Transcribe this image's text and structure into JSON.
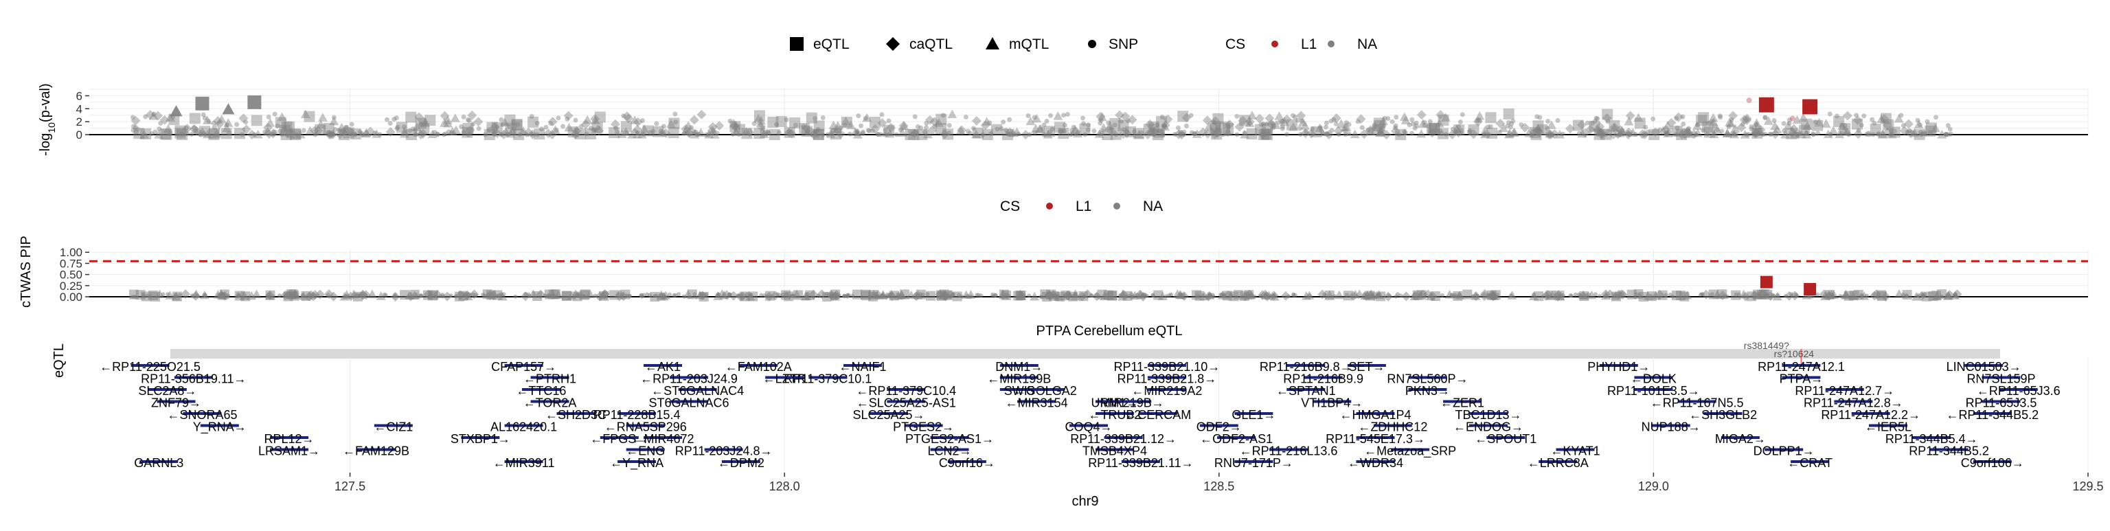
{
  "legend1": {
    "shape_items": [
      {
        "label": "eQTL",
        "shape": "square"
      },
      {
        "label": "caQTL",
        "shape": "diamond"
      },
      {
        "label": "mQTL",
        "shape": "triangle"
      },
      {
        "label": "SNP",
        "shape": "circle"
      }
    ],
    "cs_title": "CS",
    "cs_items": [
      {
        "label": "L1",
        "color": "#b22222"
      },
      {
        "label": "NA",
        "color": "#808080"
      }
    ]
  },
  "legend2": {
    "cs_title": "CS",
    "cs_items": [
      {
        "label": "L1",
        "color": "#b22222"
      },
      {
        "label": "NA",
        "color": "#808080"
      }
    ]
  },
  "chart_data": [
    {
      "type": "scatter",
      "title": "",
      "ylabel": "-log10(p-val)",
      "ylabel_parts": {
        "pre": "-log",
        "sub": "10",
        "post": "(p-val)"
      },
      "y_ticks": [
        0,
        2,
        4,
        6
      ],
      "ylim": [
        0,
        7
      ],
      "xlim": [
        127.2,
        129.5
      ],
      "data_xrange": [
        127.25,
        129.35
      ],
      "grid": true,
      "colors": {
        "na": "#808080",
        "cs": "#b22222"
      },
      "series": [
        {
          "name": "L1",
          "points": [
            {
              "x": 129.13,
              "y": 4.6,
              "shape": "square"
            },
            {
              "x": 129.18,
              "y": 4.3,
              "shape": "square"
            },
            {
              "x": 129.11,
              "y": 5.3,
              "shape": "circle"
            },
            {
              "x": 129.16,
              "y": 2.5,
              "shape": "circle"
            }
          ]
        }
      ],
      "background_points_note": "many grey NA variants spread across the region",
      "highlight_na": [
        {
          "x": 127.33,
          "y": 4.8,
          "shape": "square"
        },
        {
          "x": 127.39,
          "y": 5.0,
          "shape": "square"
        },
        {
          "x": 127.3,
          "y": 3.6,
          "shape": "triangle"
        },
        {
          "x": 127.36,
          "y": 3.9,
          "shape": "triangle"
        }
      ]
    },
    {
      "type": "scatter",
      "title": "",
      "ylabel": "cTWAS PIP",
      "y_ticks": [
        0,
        0.25,
        0.5,
        0.75,
        1.0
      ],
      "y_tick_labels": [
        "0.00",
        "0.25",
        "0.50",
        "0.75",
        "1.00"
      ],
      "ylim": [
        0,
        1.05
      ],
      "xlim": [
        127.2,
        129.5
      ],
      "threshold": 0.8,
      "threshold_color": "#ff0000",
      "grid": true,
      "series": [
        {
          "name": "L1",
          "points": [
            {
              "x": 129.13,
              "y": 0.33,
              "shape": "square"
            },
            {
              "x": 129.18,
              "y": 0.17,
              "shape": "square"
            }
          ]
        }
      ]
    },
    {
      "type": "gene_track",
      "title": "PTPA Cerebellum eQTL",
      "track_label": "eQTL",
      "xlabel": "chr9",
      "x_ticks": [
        127.5,
        128.0,
        128.5,
        129.0,
        129.5
      ],
      "x_tick_labels": [
        "127.5",
        "128.0",
        "128.5",
        "129.0",
        "129.5"
      ],
      "xlim": [
        127.2,
        129.5
      ],
      "snp_labels": [
        "rs381449?",
        "rs?10624"
      ],
      "genes": [
        {
          "name": "←RP11-225O21.5",
          "x": 127.27
        },
        {
          "name": "RP11-356B19.11→",
          "x": 127.32
        },
        {
          "name": "SLC2A8→",
          "x": 127.29
        },
        {
          "name": "ZNF79→",
          "x": 127.3
        },
        {
          "name": "←SNORA65",
          "x": 127.33
        },
        {
          "name": "Y_RNA→",
          "x": 127.35
        },
        {
          "name": "RPL12→",
          "x": 127.43
        },
        {
          "name": "←FAM129B",
          "x": 127.53
        },
        {
          "name": "←MIR3911",
          "x": 127.7
        },
        {
          "name": "CFAP157→",
          "x": 127.7
        },
        {
          "name": "←PTRH1",
          "x": 127.73
        },
        {
          "name": "←TTC16",
          "x": 127.72
        },
        {
          "name": "←TOR2A",
          "x": 127.73
        },
        {
          "name": "←SH2D3C",
          "x": 127.76
        },
        {
          "name": "AL162420.1",
          "x": 127.7
        },
        {
          "name": "←FPGS→",
          "x": 127.81
        },
        {
          "name": "←ENG",
          "x": 127.84
        },
        {
          "name": "←Y_RNA",
          "x": 127.83
        },
        {
          "name": "←AK1",
          "x": 127.86
        },
        {
          "name": "←RP11-203J24.9",
          "x": 127.89
        },
        {
          "name": "←ST6GALNAC4",
          "x": 127.9
        },
        {
          "name": "ST6GALNAC6",
          "x": 127.89
        },
        {
          "name": "RP11-228B15.4",
          "x": 127.83
        },
        {
          "name": "←RNA5SP296",
          "x": 127.84
        },
        {
          "name": "←MIR4672",
          "x": 127.86
        },
        {
          "name": "RP11-203J24.8→",
          "x": 127.93
        },
        {
          "name": "←DPM2",
          "x": 127.95
        },
        {
          "name": "←FAM102A",
          "x": 127.97
        },
        {
          "name": "RP11-379C10.1",
          "x": 128.05
        },
        {
          "name": "←RP11-379C10.4",
          "x": 128.14
        },
        {
          "name": "←SLC25A25-AS1",
          "x": 128.14
        },
        {
          "name": "SLC25A25→",
          "x": 128.12
        },
        {
          "name": "PTGES2→",
          "x": 128.16
        },
        {
          "name": "PTGES2-AS1→",
          "x": 128.19
        },
        {
          "name": "LCN2→",
          "x": 128.19
        },
        {
          "name": "C9orf16→",
          "x": 128.21
        },
        {
          "name": "DNM1→",
          "x": 128.27
        },
        {
          "name": "←MIR199B",
          "x": 128.27
        },
        {
          "name": "←GOLGA2",
          "x": 128.3
        },
        {
          "name": "←MIR3154",
          "x": 128.29
        },
        {
          "name": "←TRUB2",
          "x": 128.38
        },
        {
          "name": "COQ4→",
          "x": 128.35
        },
        {
          "name": "RP11-339B21.12→",
          "x": 128.39
        },
        {
          "name": "TMSB4XP4",
          "x": 128.38
        },
        {
          "name": "RP11-339B21.11→",
          "x": 128.41
        },
        {
          "name": "RP11-339B21.10→",
          "x": 128.44
        },
        {
          "name": "RP11-339B21.8→",
          "x": 128.44
        },
        {
          "name": "←MIR219A2",
          "x": 128.44
        },
        {
          "name": "MIR219B→",
          "x": 128.4
        },
        {
          "name": "←CERCAM",
          "x": 128.43
        },
        {
          "name": "ODF2→",
          "x": 128.5
        },
        {
          "name": "←ODF2-AS1",
          "x": 128.52
        },
        {
          "name": "←RP11-216L13.6",
          "x": 128.58
        },
        {
          "name": "RNU7-171P→",
          "x": 128.54
        },
        {
          "name": "RP11-216B9.8→",
          "x": 128.6
        },
        {
          "name": "RP11-216B9.9",
          "x": 128.62
        },
        {
          "name": "←SPTAN1",
          "x": 128.6
        },
        {
          "name": "VTI1BP4→",
          "x": 128.63
        },
        {
          "name": "←HMGA1P4",
          "x": 128.68
        },
        {
          "name": "←ZDHHC12",
          "x": 128.7
        },
        {
          "name": "RP11-545E17.3→",
          "x": 128.68
        },
        {
          "name": "←Metazoa_SRP",
          "x": 128.72
        },
        {
          "name": "←WDR34",
          "x": 128.68
        },
        {
          "name": "SET→",
          "x": 128.67
        },
        {
          "name": "RN7SL560P→",
          "x": 128.74
        },
        {
          "name": "PKN3→",
          "x": 128.74
        },
        {
          "name": "←ZER1",
          "x": 128.78
        },
        {
          "name": "TBC1D13→",
          "x": 128.81
        },
        {
          "name": "←ENDOG→",
          "x": 128.81
        },
        {
          "name": "←SPOUT1",
          "x": 128.83
        },
        {
          "name": "←KYAT1",
          "x": 128.91
        },
        {
          "name": "←LRRC8A",
          "x": 128.89
        },
        {
          "name": "PHYHD1→",
          "x": 128.96
        },
        {
          "name": "←DOLK",
          "x": 129.0
        },
        {
          "name": "RP11-101E3.5→",
          "x": 129.0
        },
        {
          "name": "←RP11-167N5.5",
          "x": 129.05
        },
        {
          "name": "←SH3GLB2",
          "x": 129.08
        },
        {
          "name": "NUP188→",
          "x": 129.02
        },
        {
          "name": "MIGA2→",
          "x": 129.1
        },
        {
          "name": "DOLPP1→",
          "x": 129.15
        },
        {
          "name": "←CRAT",
          "x": 129.18
        },
        {
          "name": "RP11-247A12.1",
          "x": 129.17
        },
        {
          "name": "PTPA→",
          "x": 129.17
        },
        {
          "name": "RP11-247A12.7→",
          "x": 129.22
        },
        {
          "name": "RP11-247A12.8→",
          "x": 129.23
        },
        {
          "name": "RP11-247A12.2→",
          "x": 129.25
        },
        {
          "name": "←IER5L",
          "x": 129.27
        },
        {
          "name": "RP11-344B5.4→",
          "x": 129.32
        },
        {
          "name": "RP11-344B5.2",
          "x": 129.34
        },
        {
          "name": "C9orf106→",
          "x": 129.39
        },
        {
          "name": "LINC01503→",
          "x": 129.38
        },
        {
          "name": "RN7SL159P",
          "x": 129.4
        },
        {
          "name": "←RP11-65J3.6",
          "x": 129.42
        },
        {
          "name": "RP11-65J3.5",
          "x": 129.4
        },
        {
          "name": "←RP11-344B5.2",
          "x": 129.39
        },
        {
          "name": "←CIZ1",
          "x": 127.55
        },
        {
          "name": "STXBP1→",
          "x": 127.65
        },
        {
          "name": "LRSAM1→",
          "x": 127.43
        },
        {
          "name": "GARNL3",
          "x": 127.28
        },
        {
          "name": "←NAIF1",
          "x": 128.09
        },
        {
          "name": "←LZTR",
          "x": 128.0
        },
        {
          "name": "SWI5",
          "x": 128.27
        },
        {
          "name": "URM1→",
          "x": 128.38
        },
        {
          "name": "GLE1→",
          "x": 128.54
        }
      ]
    }
  ]
}
